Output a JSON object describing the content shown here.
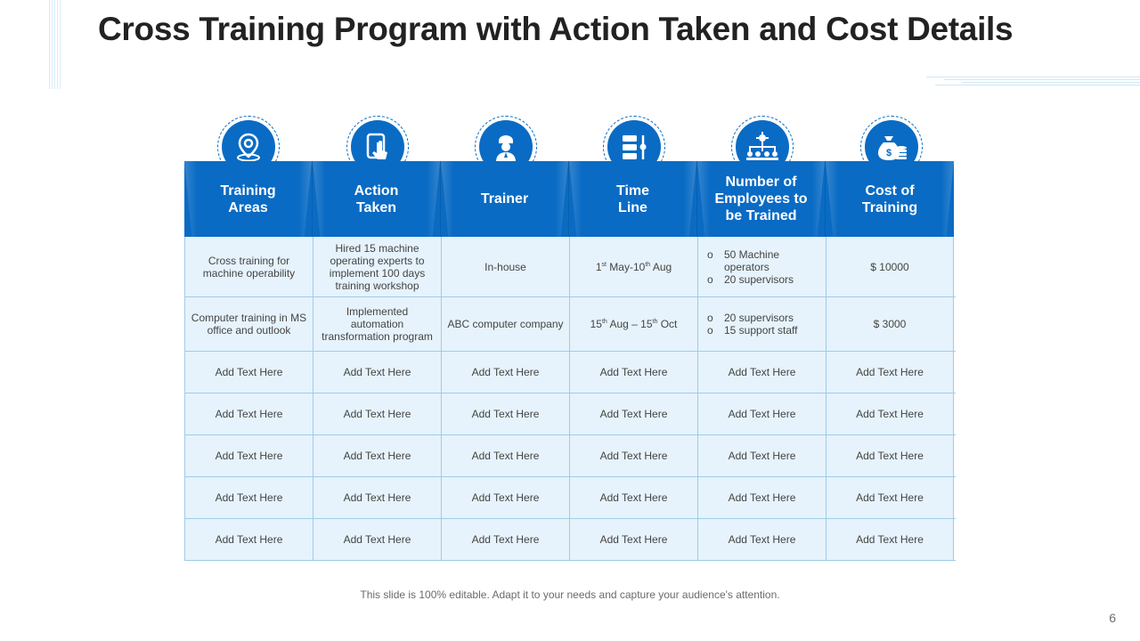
{
  "title": "Cross Training Program with Action Taken and Cost Details",
  "headers": [
    {
      "label_1": "Training",
      "label_2": "Areas",
      "icon": "location-pin-icon"
    },
    {
      "label_1": "Action",
      "label_2": "Taken",
      "icon": "touch-hand-icon"
    },
    {
      "label_1": "Trainer",
      "label_2": "",
      "icon": "trainer-person-icon"
    },
    {
      "label_1": "Time",
      "label_2": "Line",
      "icon": "timeline-icon"
    },
    {
      "label_1": "Number of",
      "label_2": "Employees to",
      "label_3": "be Trained",
      "icon": "org-chart-icon"
    },
    {
      "label_1": "Cost of",
      "label_2": "Training",
      "icon": "money-bag-icon"
    }
  ],
  "row1": {
    "training_area": "Cross training for machine operability",
    "action_taken": "Hired 15 machine operating experts to implement 100 days training workshop",
    "trainer": "In-house",
    "time_line": {
      "d1": "1",
      "s1": "st",
      "m1": " May-10",
      "s2": "th",
      "m2": " Aug"
    },
    "employees": [
      "50 Machine operators",
      "20 supervisors"
    ],
    "cost": "$ 10000"
  },
  "row2": {
    "training_area": "Computer training in MS office and outlook",
    "action_taken": "Implemented automation transformation program",
    "trainer": "ABC computer company",
    "time_line": {
      "d1": "15",
      "s1": "th",
      "m1": " Aug – 15",
      "s2": "th",
      "m2": " Oct"
    },
    "employees": [
      "20 supervisors",
      "15 support staff"
    ],
    "cost": "$ 3000"
  },
  "bullet": "o",
  "placeholder": "Add Text Here",
  "footer": "This slide is 100% editable. Adapt it to your needs and capture your audience's attention.",
  "page_number": "6",
  "colors": {
    "accent": "#0a6bc4",
    "cell_bg": "#e6f3fc",
    "border": "#9fcbe8"
  }
}
